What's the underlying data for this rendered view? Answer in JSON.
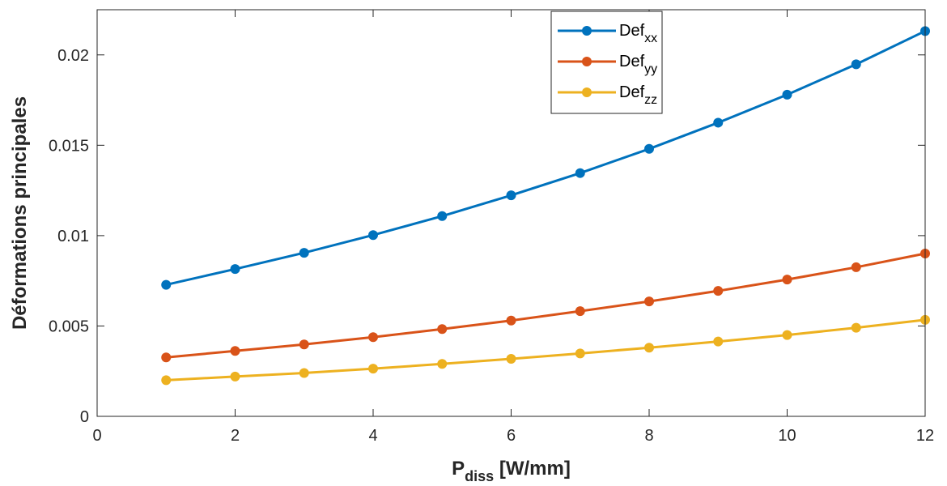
{
  "chart_data": {
    "type": "line",
    "xlabel": {
      "main": "P",
      "sub": "diss",
      "rest": " [W/mm]"
    },
    "ylabel": "Déformations principales",
    "xlim": [
      0,
      12
    ],
    "ylim": [
      0,
      0.0225
    ],
    "xticks": [
      0,
      2,
      4,
      6,
      8,
      10,
      12
    ],
    "xtick_labels": [
      "0",
      "2",
      "4",
      "6",
      "8",
      "10",
      "12"
    ],
    "yticks": [
      0,
      0.005,
      0.01,
      0.015,
      0.02
    ],
    "ytick_labels": [
      "0",
      "0.005",
      "0.01",
      "0.015",
      "0.02"
    ],
    "grid": false,
    "legend_position": "top-center",
    "x": [
      1,
      2,
      3,
      4,
      5,
      6,
      7,
      8,
      9,
      10,
      11,
      12
    ],
    "series": [
      {
        "name": "Def_xx",
        "label_base": "Def",
        "label_sub": "xx",
        "color": "#0072BD",
        "values": [
          0.00728,
          0.00815,
          0.00905,
          0.01003,
          0.01108,
          0.01223,
          0.01346,
          0.0148,
          0.01625,
          0.0178,
          0.01948,
          0.02132
        ]
      },
      {
        "name": "Def_yy",
        "label_base": "Def",
        "label_sub": "yy",
        "color": "#D95319",
        "values": [
          0.00326,
          0.00362,
          0.00398,
          0.00438,
          0.00483,
          0.0053,
          0.00582,
          0.00636,
          0.00694,
          0.00757,
          0.00825,
          0.00901
        ]
      },
      {
        "name": "Def_zz",
        "label_base": "Def",
        "label_sub": "zz",
        "color": "#EDB120",
        "values": [
          0.002,
          0.0022,
          0.0024,
          0.00264,
          0.0029,
          0.00318,
          0.00348,
          0.0038,
          0.00414,
          0.0045,
          0.0049,
          0.00534
        ]
      }
    ]
  }
}
